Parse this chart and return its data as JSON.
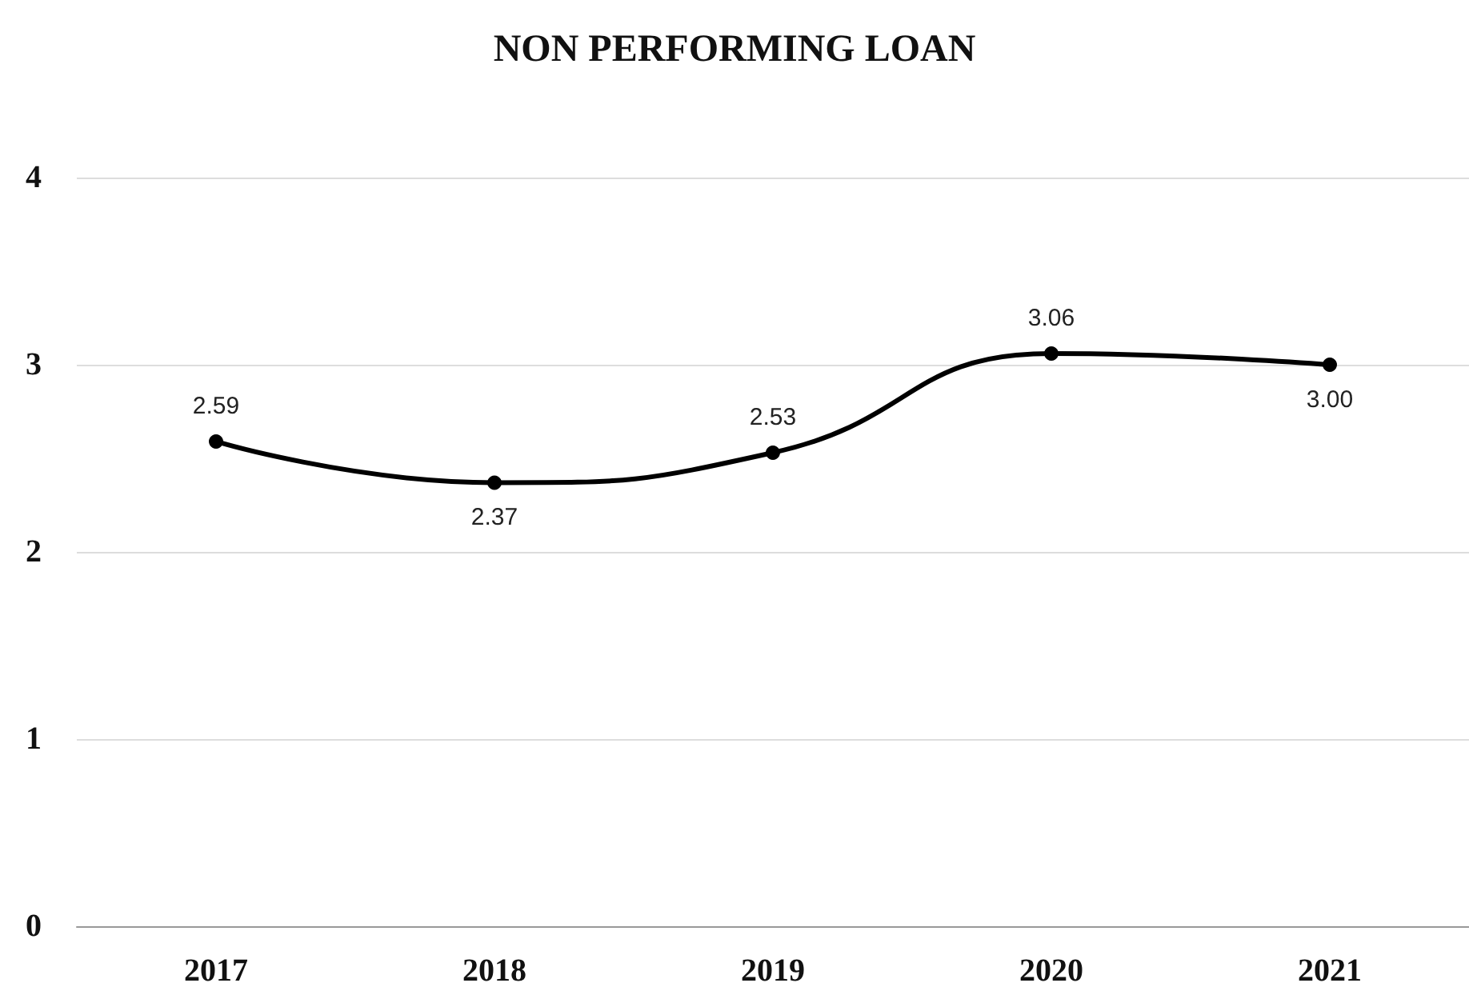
{
  "chart_data": {
    "type": "line",
    "title": "NON PERFORMING LOAN",
    "categories": [
      "2017",
      "2018",
      "2019",
      "2020",
      "2021"
    ],
    "series": [
      {
        "color": "#000000",
        "values": [
          2.59,
          2.37,
          2.53,
          3.06,
          3.0
        ],
        "value_labels": [
          "2.59",
          "2.37",
          "2.53",
          "3.06",
          "3.00"
        ]
      }
    ],
    "ylim": [
      0,
      4
    ],
    "yticks": [
      0,
      1,
      2,
      3,
      4
    ],
    "grid": "y",
    "marker": "circle",
    "line_style": "solid"
  }
}
